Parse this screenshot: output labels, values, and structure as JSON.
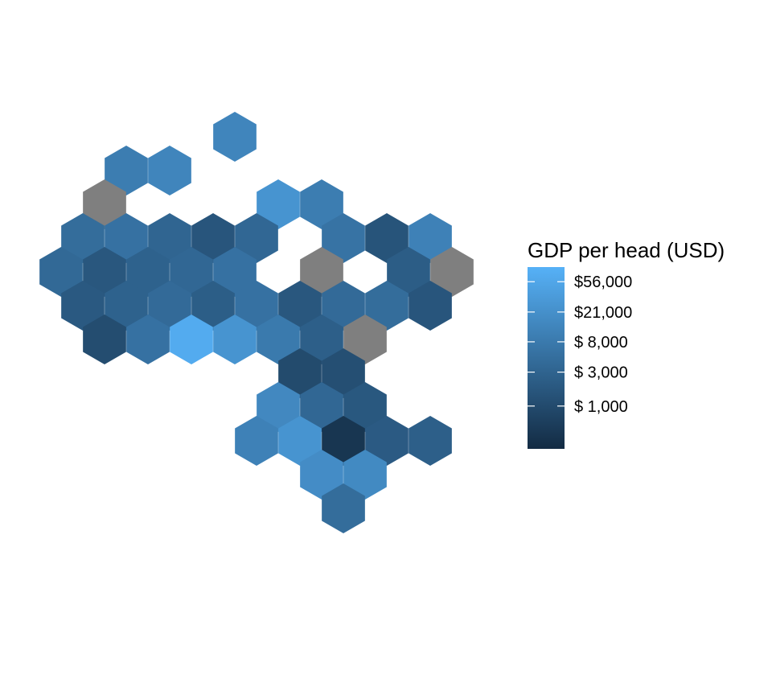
{
  "chart_data": {
    "type": "heatmap",
    "subtype": "hexagon-tile-map",
    "title": "",
    "legend": {
      "title": "GDP per head (USD)",
      "placement": "right",
      "scale": "log",
      "color_low": "#132B43",
      "color_high": "#56B1F7",
      "range": [
        250,
        90000
      ],
      "missing_color": "#7F7F7F",
      "breaks": [
        {
          "value": 56000,
          "label": "$56,000"
        },
        {
          "value": 21000,
          "label": "$21,000"
        },
        {
          "value": 8000,
          "label": "$ 8,000"
        },
        {
          "value": 3000,
          "label": "$ 3,000"
        },
        {
          "value": 1000,
          "label": "$ 1,000"
        }
      ]
    },
    "grid": false,
    "tiles": [
      {
        "col": 9,
        "row": 0,
        "gdp": 13000
      },
      {
        "col": 4,
        "row": 1,
        "gdp": 9000
      },
      {
        "col": 6,
        "row": 1,
        "gdp": 13000
      },
      {
        "col": 3,
        "row": 2,
        "gdp": null
      },
      {
        "col": 11,
        "row": 2,
        "gdp": 25000
      },
      {
        "col": 13,
        "row": 2,
        "gdp": 9000
      },
      {
        "col": 2,
        "row": 3,
        "gdp": 4500
      },
      {
        "col": 4,
        "row": 3,
        "gdp": 5500
      },
      {
        "col": 6,
        "row": 3,
        "gdp": 3200
      },
      {
        "col": 8,
        "row": 3,
        "gdp": 1600
      },
      {
        "col": 10,
        "row": 3,
        "gdp": 3500
      },
      {
        "col": 14,
        "row": 3,
        "gdp": 6000
      },
      {
        "col": 16,
        "row": 3,
        "gdp": 1500
      },
      {
        "col": 18,
        "row": 3,
        "gdp": 11000
      },
      {
        "col": 1,
        "row": 4,
        "gdp": 3800
      },
      {
        "col": 3,
        "row": 4,
        "gdp": 1700
      },
      {
        "col": 5,
        "row": 4,
        "gdp": 2800
      },
      {
        "col": 7,
        "row": 4,
        "gdp": 3500
      },
      {
        "col": 9,
        "row": 4,
        "gdp": 5500
      },
      {
        "col": 13,
        "row": 4,
        "gdp": null
      },
      {
        "col": 17,
        "row": 4,
        "gdp": 2200
      },
      {
        "col": 19,
        "row": 4,
        "gdp": null
      },
      {
        "col": 2,
        "row": 5,
        "gdp": 1900
      },
      {
        "col": 4,
        "row": 5,
        "gdp": 2800
      },
      {
        "col": 6,
        "row": 5,
        "gdp": 4000
      },
      {
        "col": 8,
        "row": 5,
        "gdp": 2300
      },
      {
        "col": 10,
        "row": 5,
        "gdp": 5500
      },
      {
        "col": 12,
        "row": 5,
        "gdp": 1700
      },
      {
        "col": 14,
        "row": 5,
        "gdp": 4000
      },
      {
        "col": 16,
        "row": 5,
        "gdp": 4500
      },
      {
        "col": 18,
        "row": 5,
        "gdp": 1600
      },
      {
        "col": 3,
        "row": 6,
        "gdp": 1100
      },
      {
        "col": 5,
        "row": 6,
        "gdp": 5500
      },
      {
        "col": 7,
        "row": 6,
        "gdp": 70000
      },
      {
        "col": 9,
        "row": 6,
        "gdp": 25000
      },
      {
        "col": 11,
        "row": 6,
        "gdp": 8000
      },
      {
        "col": 13,
        "row": 6,
        "gdp": 2500
      },
      {
        "col": 15,
        "row": 6,
        "gdp": null
      },
      {
        "col": 12,
        "row": 7,
        "gdp": 1000
      },
      {
        "col": 14,
        "row": 7,
        "gdp": 1200
      },
      {
        "col": 11,
        "row": 8,
        "gdp": 15000
      },
      {
        "col": 13,
        "row": 8,
        "gdp": 3500
      },
      {
        "col": 15,
        "row": 8,
        "gdp": 1800
      },
      {
        "col": 10,
        "row": 9,
        "gdp": 11000
      },
      {
        "col": 12,
        "row": 9,
        "gdp": 25000
      },
      {
        "col": 14,
        "row": 9,
        "gdp": 400
      },
      {
        "col": 16,
        "row": 9,
        "gdp": 2000
      },
      {
        "col": 18,
        "row": 9,
        "gdp": 2500
      },
      {
        "col": 13,
        "row": 10,
        "gdp": 18000
      },
      {
        "col": 15,
        "row": 10,
        "gdp": 16000
      },
      {
        "col": 14,
        "row": 11,
        "gdp": 4500
      }
    ]
  }
}
